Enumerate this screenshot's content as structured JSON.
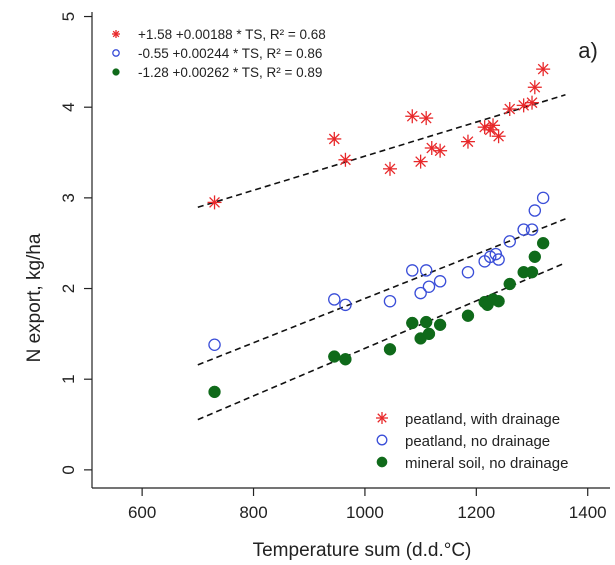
{
  "chart_data": {
    "type": "scatter",
    "panel_label": "a)",
    "xlabel": "Temperature sum (d.d.°C)",
    "ylabel": "N export, kg/ha",
    "xlim": [
      510,
      1440
    ],
    "ylim": [
      -0.2,
      5.05
    ],
    "x_ticks": [
      600,
      800,
      1000,
      1200,
      1400
    ],
    "y_ticks": [
      0,
      1,
      2,
      3,
      4,
      5
    ],
    "grid": false,
    "legend_position": "bottom-right",
    "equations_position": "top-left",
    "colors": {
      "peat_drain": "#e8282a",
      "peat_nodrain": "#3a4ed8",
      "mineral": "#0f6a1a",
      "axis": "#222222",
      "fit_line": "#111111"
    },
    "series": [
      {
        "name": "peatland, with drainage",
        "equation": "+1.58 +0.00188 * TS, R² = 0.68",
        "marker": "asterisk",
        "intercept": 1.58,
        "slope": 0.00188,
        "fit_range": [
          700,
          1360
        ],
        "x": [
          730,
          945,
          965,
          1045,
          1085,
          1100,
          1110,
          1120,
          1135,
          1185,
          1215,
          1225,
          1230,
          1240,
          1260,
          1285,
          1300,
          1305,
          1320
        ],
        "y": [
          2.95,
          3.65,
          3.42,
          3.32,
          3.9,
          3.4,
          3.88,
          3.55,
          3.52,
          3.62,
          3.78,
          3.75,
          3.8,
          3.68,
          3.98,
          4.02,
          4.05,
          4.22,
          4.42
        ]
      },
      {
        "name": "peatland, no drainage",
        "equation": "-0.55 +0.00244 * TS, R² = 0.86",
        "marker": "open-circle",
        "intercept": -0.55,
        "slope": 0.00244,
        "fit_range": [
          700,
          1360
        ],
        "x": [
          730,
          945,
          965,
          1045,
          1085,
          1100,
          1110,
          1115,
          1135,
          1185,
          1215,
          1225,
          1235,
          1240,
          1260,
          1285,
          1300,
          1305,
          1320
        ],
        "y": [
          1.38,
          1.88,
          1.82,
          1.86,
          2.2,
          1.95,
          2.2,
          2.02,
          2.08,
          2.18,
          2.3,
          2.35,
          2.38,
          2.32,
          2.52,
          2.65,
          2.65,
          2.86,
          3.0
        ]
      },
      {
        "name": "mineral soil, no drainage",
        "equation": "-1.28 +0.00262 * TS, R² = 0.89",
        "marker": "filled-circle",
        "intercept": -1.28,
        "slope": 0.00262,
        "fit_range": [
          700,
          1360
        ],
        "x": [
          730,
          945,
          965,
          1045,
          1085,
          1100,
          1110,
          1115,
          1135,
          1185,
          1215,
          1220,
          1230,
          1240,
          1260,
          1285,
          1300,
          1305,
          1320
        ],
        "y": [
          0.86,
          1.25,
          1.22,
          1.33,
          1.62,
          1.45,
          1.63,
          1.5,
          1.6,
          1.7,
          1.85,
          1.82,
          1.88,
          1.86,
          2.05,
          2.18,
          2.18,
          2.35,
          2.5
        ]
      }
    ]
  }
}
